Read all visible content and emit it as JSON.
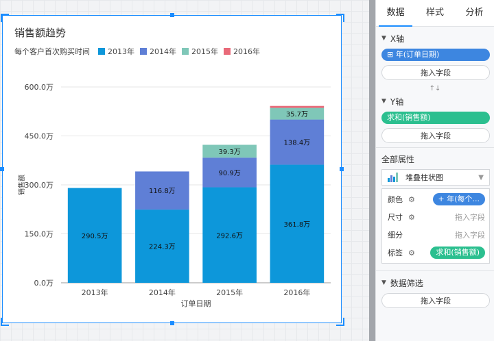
{
  "chart_card": {
    "title": "销售额趋势",
    "legend_caption": "每个客户首次购买时间"
  },
  "chart_data": {
    "type": "bar",
    "stacked": true,
    "title": "销售额趋势",
    "xlabel": "订单日期",
    "ylabel": "销售额",
    "ylim": [
      0,
      6000000
    ],
    "yticks": [
      "0.0万",
      "150.0万",
      "300.0万",
      "450.0万",
      "600.0万"
    ],
    "ytick_values": [
      0,
      1500000,
      3000000,
      4500000,
      6000000
    ],
    "categories": [
      "2013年",
      "2014年",
      "2015年",
      "2016年"
    ],
    "grid": true,
    "legend_position": "top-left",
    "series": [
      {
        "name": "2013年",
        "color": "#0d97da",
        "values": [
          2905000,
          2243000,
          2926000,
          3618000
        ],
        "labels": [
          "290.5万",
          "224.3万",
          "292.6万",
          "361.8万"
        ]
      },
      {
        "name": "2014年",
        "color": "#5f7fd6",
        "values": [
          0,
          1168000,
          909000,
          1384000
        ],
        "labels": [
          "",
          "116.8万",
          "90.9万",
          "138.4万"
        ]
      },
      {
        "name": "2015年",
        "color": "#7fc7b8",
        "values": [
          0,
          0,
          393000,
          357000
        ],
        "labels": [
          "",
          "",
          "39.3万",
          "35.7万"
        ]
      },
      {
        "name": "2016年",
        "color": "#e96a79",
        "values": [
          0,
          0,
          0,
          60000
        ],
        "labels": [
          "",
          "",
          "",
          ""
        ]
      }
    ]
  },
  "panel": {
    "tabs": [
      "数据",
      "样式",
      "分析"
    ],
    "active_tab": "数据",
    "x_axis": {
      "label": "X轴",
      "field": "⊞ 年(订单日期)",
      "drop_hint": "拖入字段"
    },
    "swap_symbol": "↑↓",
    "y_axis": {
      "label": "Y轴",
      "field": "求和(销售额)",
      "drop_hint": "拖入字段"
    },
    "all_props": {
      "label": "全部属性",
      "chart_type": "堆叠柱状图",
      "rows": [
        {
          "label": "颜色",
          "value": "+ 年(每个...",
          "kind": "pill"
        },
        {
          "label": "尺寸",
          "value": "拖入字段",
          "kind": "text"
        },
        {
          "label": "细分",
          "value": "拖入字段",
          "kind": "text"
        },
        {
          "label": "标签",
          "value": "求和(销售额)",
          "kind": "pill"
        }
      ]
    },
    "filter": {
      "label": "数据筛选",
      "drop_hint": "拖入字段"
    }
  },
  "colors": {
    "accent": "#1a8cff",
    "pill_blue": "#3d86e0",
    "pill_green": "#2bbf8f"
  }
}
